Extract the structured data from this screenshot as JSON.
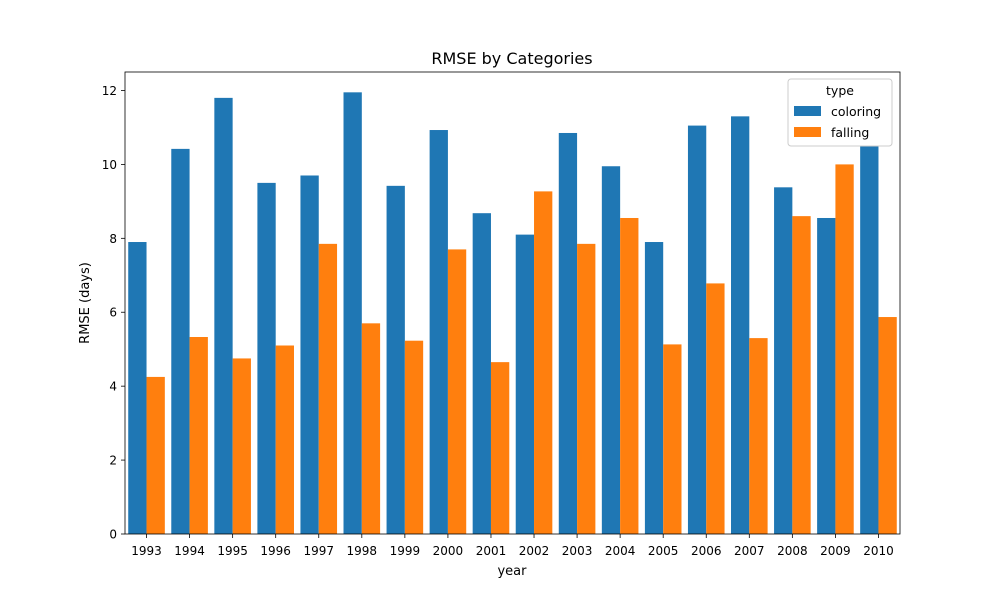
{
  "chart_data": {
    "type": "bar",
    "title": "RMSE by Categories",
    "xlabel": "year",
    "ylabel": "RMSE (days)",
    "ylim": [
      0,
      12.5
    ],
    "yticks": [
      0,
      2,
      4,
      6,
      8,
      10,
      12
    ],
    "grid": false,
    "legend": {
      "title": "type",
      "placement": "top-right"
    },
    "categories": [
      "1993",
      "1994",
      "1995",
      "1996",
      "1997",
      "1998",
      "1999",
      "2000",
      "2001",
      "2002",
      "2003",
      "2004",
      "2005",
      "2006",
      "2007",
      "2008",
      "2009",
      "2010"
    ],
    "series": [
      {
        "name": "coloring",
        "color": "#1f77b4",
        "values": [
          7.9,
          10.42,
          11.8,
          9.5,
          9.7,
          11.95,
          9.42,
          10.93,
          8.68,
          8.1,
          10.85,
          9.95,
          7.9,
          11.05,
          11.3,
          9.38,
          8.55,
          10.5
        ]
      },
      {
        "name": "falling",
        "color": "#ff7f0e",
        "values": [
          4.25,
          5.33,
          4.75,
          5.1,
          7.85,
          5.7,
          5.23,
          7.7,
          4.65,
          9.27,
          7.85,
          8.55,
          5.13,
          6.78,
          5.3,
          8.6,
          10.0,
          5.87
        ]
      }
    ]
  }
}
